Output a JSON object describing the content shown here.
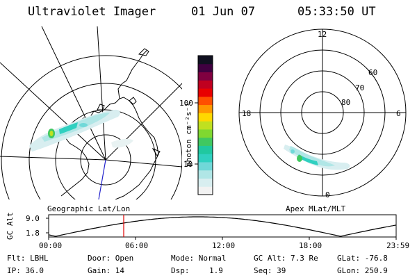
{
  "header": {
    "instrument": "Ultraviolet Imager",
    "date": "01 Jun 07",
    "time": "05:33:50 UT"
  },
  "colorbar": {
    "unit_label": "photon cm⁻²s⁻¹",
    "ticks": [
      "100",
      "10"
    ],
    "colors": [
      "#f2f2f2",
      "#d8eef0",
      "#b0e6e6",
      "#70d8d8",
      "#30d0c0",
      "#20c8a0",
      "#40c860",
      "#80d830",
      "#c0e020",
      "#ffd800",
      "#ff9800",
      "#ff5000",
      "#e80000",
      "#c00020",
      "#800040",
      "#400040",
      "#101020"
    ]
  },
  "left_map": {
    "label": "Geographic Lat/Lon"
  },
  "right_map": {
    "label": "Apex MLat/MLT",
    "mlt_labels": {
      "top": "12",
      "left": "18",
      "right": "6",
      "bottom": "0"
    },
    "lat_labels": [
      "60",
      "70",
      "80"
    ]
  },
  "timeline": {
    "axis_label": "GC Alt",
    "y_ticks": [
      "9.0",
      "1.8"
    ],
    "x_ticks": [
      "00:00",
      "06:00",
      "12:00",
      "18:00",
      "23:59"
    ],
    "current_marker_time": "05:33"
  },
  "info": {
    "flt": "Flt: LBHL",
    "door": "Door: Open",
    "mode": "Mode: Normal",
    "gcalt": "GC Alt: 7.3 Re",
    "glat": "GLat: -76.8",
    "ip": "IP: 36.0",
    "gain": "Gain: 14",
    "dsp_label": "Dsp:",
    "dsp_value": "1.9",
    "seq": "Seq: 39",
    "glon": "GLon: 250.9"
  }
}
